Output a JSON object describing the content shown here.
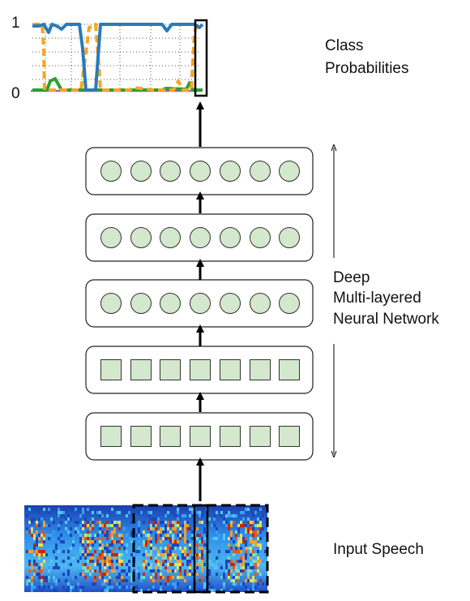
{
  "diagram": {
    "probabilities": {
      "y_top_label": "1",
      "y_bottom_label": "0",
      "title_line1": "Class",
      "title_line2": "Probabilities"
    },
    "network": {
      "label_line1": "Deep",
      "label_line2": "Multi-layered",
      "label_line3": "Neural Network",
      "layers": [
        {
          "unit_shape": "circle",
          "units": 7
        },
        {
          "unit_shape": "circle",
          "units": 7
        },
        {
          "unit_shape": "circle",
          "units": 7
        },
        {
          "unit_shape": "square",
          "units": 7
        },
        {
          "unit_shape": "square",
          "units": 7
        }
      ]
    },
    "input": {
      "label": "Input Speech"
    },
    "colors": {
      "unit_fill": "#d3e8cc",
      "unit_stroke": "#333333",
      "series_blue": "#2a7bb8",
      "series_orange": "#f5a623",
      "series_green": "#2ca02c",
      "series_purple": "#9467bd"
    }
  }
}
